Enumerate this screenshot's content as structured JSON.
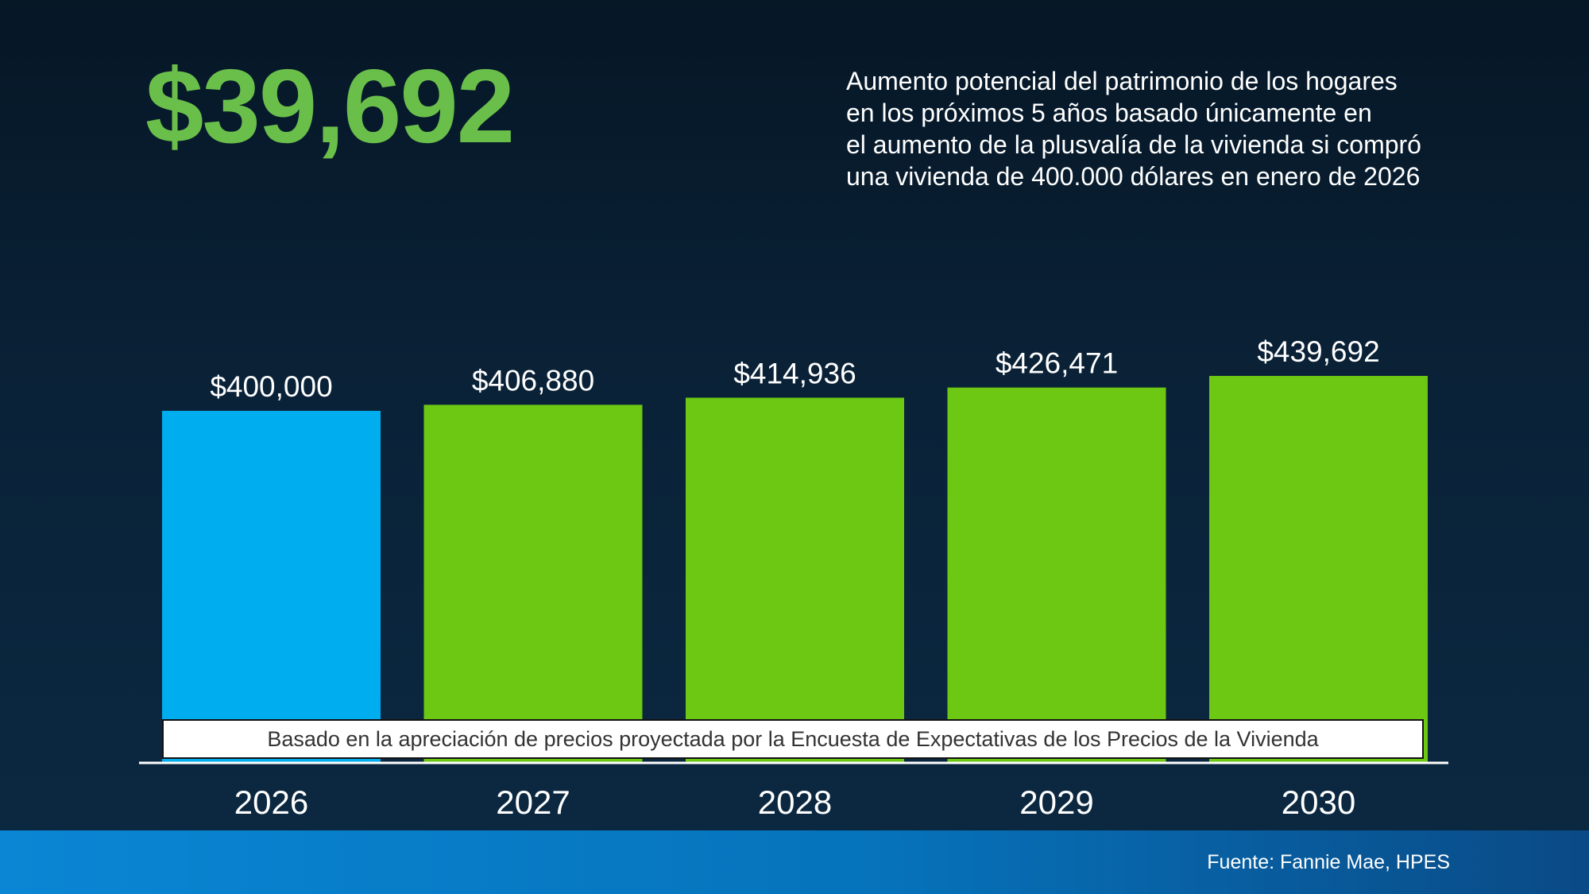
{
  "headline": {
    "amount": "$39,692",
    "description_lines": [
      "Aumento potencial del patrimonio de los hogares",
      "en los próximos 5 años basado únicamente en",
      "el aumento de la plusvalía de la vivienda si compró",
      "una vivienda de 400.000 dólares en enero de 2026"
    ]
  },
  "note": "Basado en la apreciación de precios proyectada por la Encuesta de Expectativas de los Precios de la Vivienda",
  "source": "Fuente: Fannie Mae, HPES",
  "colors": {
    "accent_green_text": "#6abf4b",
    "bar_blue": "#00aeef",
    "bar_green": "#6cc812",
    "background_dark": "#061726",
    "footer_blue": "#0a86d4"
  },
  "chart_data": {
    "type": "bar",
    "categories": [
      "2026",
      "2027",
      "2028",
      "2029",
      "2030"
    ],
    "values": [
      400000,
      406880,
      414936,
      426471,
      439692
    ],
    "value_labels": [
      "$400,000",
      "$406,880",
      "$414,936",
      "$426,471",
      "$439,692"
    ],
    "bar_colors": [
      "#00aeef",
      "#6cc812",
      "#6cc812",
      "#6cc812",
      "#6cc812"
    ],
    "title": "",
    "xlabel": "",
    "ylabel": "",
    "grid": false,
    "legend": "none"
  }
}
